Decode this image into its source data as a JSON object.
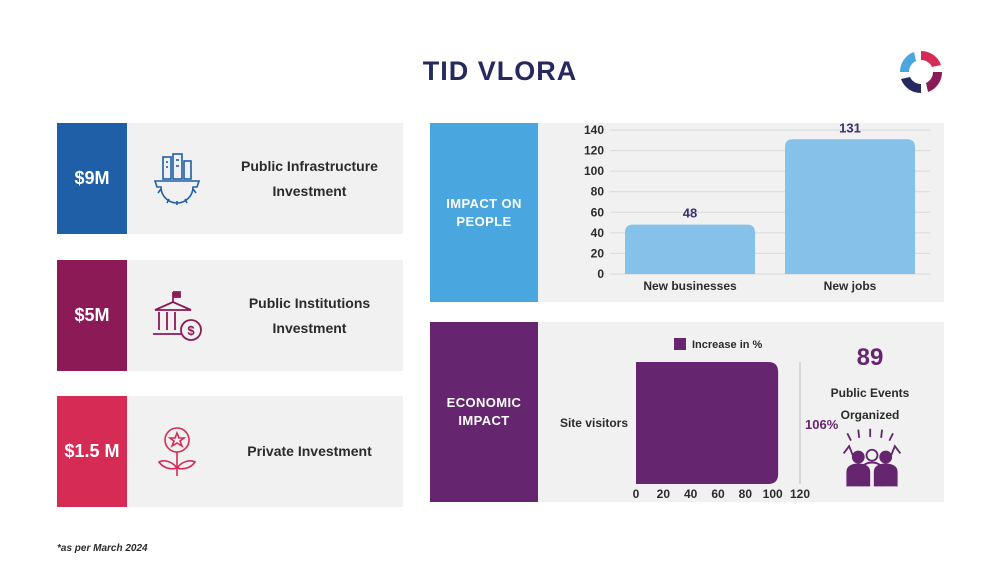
{
  "header": {
    "title": "TID VLORA"
  },
  "colors": {
    "navy": "#26295e",
    "blue": "#1f5fa8",
    "magenta": "#8c1a57",
    "red": "#d62b55",
    "sky": "#4aa6df",
    "lightblue": "#85c1e9",
    "purple": "#66256f",
    "bg": "#f1f1f1"
  },
  "cards": [
    {
      "amount": "$9M",
      "label": "Public Infrastructure Investment",
      "icon": "city-gear-icon"
    },
    {
      "amount": "$5M",
      "label": "Public Institutions Investment",
      "icon": "bank-dollar-icon"
    },
    {
      "amount": "$1.5 M",
      "label": "Private Investment",
      "icon": "flower-star-icon"
    }
  ],
  "impact_people": {
    "heading": "IMPACT ON PEOPLE"
  },
  "economic": {
    "heading": "ECONOMIC IMPACT",
    "events_count": "89",
    "events_label": "Public Events Organized",
    "events_icon": "crowd-cheering-icon"
  },
  "footnote": "*as per March 2024",
  "chart_data": [
    {
      "type": "bar",
      "categories": [
        "New businesses",
        "New jobs"
      ],
      "values": [
        48,
        131
      ],
      "ylim": [
        0,
        140
      ],
      "yticks": [
        0,
        20,
        40,
        60,
        80,
        100,
        120,
        140
      ],
      "data_labels": [
        "48",
        "131"
      ],
      "grid": true
    },
    {
      "type": "bar",
      "orientation": "horizontal",
      "categories": [
        "Site visitors"
      ],
      "series": [
        {
          "name": "Increase in %",
          "values": [
            106
          ]
        }
      ],
      "data_labels": [
        "106%"
      ],
      "xlim": [
        0,
        120
      ],
      "xticks": [
        0,
        20,
        40,
        60,
        80,
        100,
        120
      ],
      "legend": "top"
    }
  ]
}
